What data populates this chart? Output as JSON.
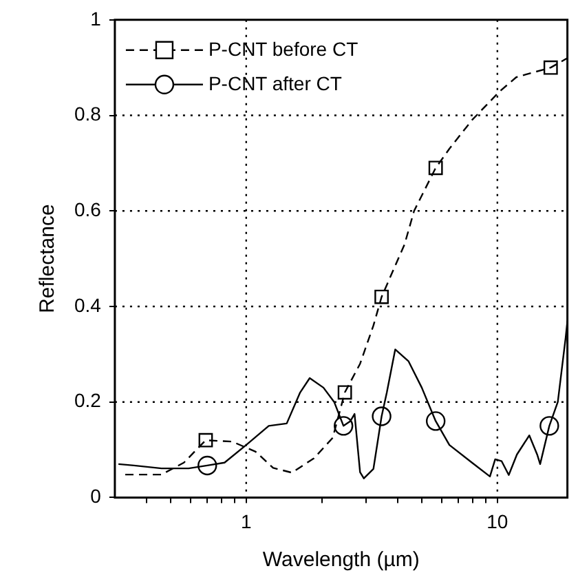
{
  "chart_data": {
    "type": "line",
    "xlabel": "Wavelength (µm)",
    "ylabel": "Reflectance",
    "log": "x",
    "xlim": [
      0.31,
      19
    ],
    "ylim": [
      0,
      1
    ],
    "xticks": [
      {
        "value": 0.4,
        "label": null
      },
      {
        "value": 0.5,
        "label": null
      },
      {
        "value": 0.6,
        "label": null
      },
      {
        "value": 0.7,
        "label": null
      },
      {
        "value": 0.8,
        "label": null
      },
      {
        "value": 0.9,
        "label": null
      },
      1,
      {
        "value": 2,
        "label": null
      },
      {
        "value": 3,
        "label": null
      },
      {
        "value": 4,
        "label": null
      },
      {
        "value": 5,
        "label": null
      },
      {
        "value": 6,
        "label": null
      },
      {
        "value": 7,
        "label": null
      },
      {
        "value": 8,
        "label": null
      },
      {
        "value": 9,
        "label": null
      },
      10
    ],
    "yticks": [
      0,
      0.2,
      0.4,
      0.6,
      0.8,
      1
    ],
    "grid": true,
    "legend": "top left",
    "series": [
      {
        "name": "P-CNT before CT",
        "color": "#000000",
        "line_style": "dashed",
        "marker": "none",
        "x": [
          0.33,
          0.46,
          0.565,
          0.69,
          0.88,
          1.09,
          1.28,
          1.52,
          1.86,
          2.21,
          2.47,
          2.84,
          3.21,
          3.46,
          4.27,
          4.66,
          5.68,
          6.44,
          7.92,
          10.2,
          11.9,
          16.3,
          19
        ],
        "values": [
          0.048,
          0.048,
          0.073,
          0.12,
          0.117,
          0.096,
          0.062,
          0.052,
          0.082,
          0.125,
          0.22,
          0.28,
          0.36,
          0.42,
          0.53,
          0.6,
          0.69,
          0.73,
          0.79,
          0.85,
          0.88,
          0.9,
          0.92
        ]
      },
      {
        "type": "scatter",
        "color": "#000000",
        "marker": "square",
        "x": [
          0.69,
          2.47,
          3.46,
          5.68,
          16.3
        ],
        "values": [
          0.12,
          0.22,
          0.42,
          0.69,
          0.9
        ]
      },
      {
        "name": "P-CNT after CT",
        "color": "#000000",
        "line_style": "solid",
        "marker": "none",
        "x": [
          0.31,
          0.357,
          0.46,
          0.59,
          0.7,
          0.82,
          1.0,
          1.23,
          1.45,
          1.64,
          1.79,
          2.03,
          2.24,
          2.44,
          2.6,
          2.7,
          2.84,
          2.94,
          3.21,
          3.46,
          3.63,
          3.92,
          4.43,
          5.0,
          5.68,
          6.44,
          7.92,
          9.34,
          9.8,
          10.4,
          11.1,
          11.96,
          13.4,
          14.4,
          14.8,
          16.1,
          17.4,
          18.7,
          19
        ],
        "values": [
          0.07,
          0.067,
          0.061,
          0.061,
          0.067,
          0.073,
          0.11,
          0.15,
          0.155,
          0.22,
          0.25,
          0.23,
          0.2,
          0.15,
          0.16,
          0.175,
          0.053,
          0.04,
          0.06,
          0.17,
          0.22,
          0.31,
          0.285,
          0.23,
          0.16,
          0.11,
          0.073,
          0.044,
          0.08,
          0.076,
          0.047,
          0.09,
          0.13,
          0.09,
          0.07,
          0.15,
          0.2,
          0.335,
          0.37
        ]
      },
      {
        "type": "scatter",
        "color": "#000000",
        "marker": "circle",
        "x": [
          0.7,
          2.44,
          3.46,
          5.68,
          16.1
        ],
        "values": [
          0.067,
          0.15,
          0.17,
          0.16,
          0.15
        ]
      }
    ]
  }
}
